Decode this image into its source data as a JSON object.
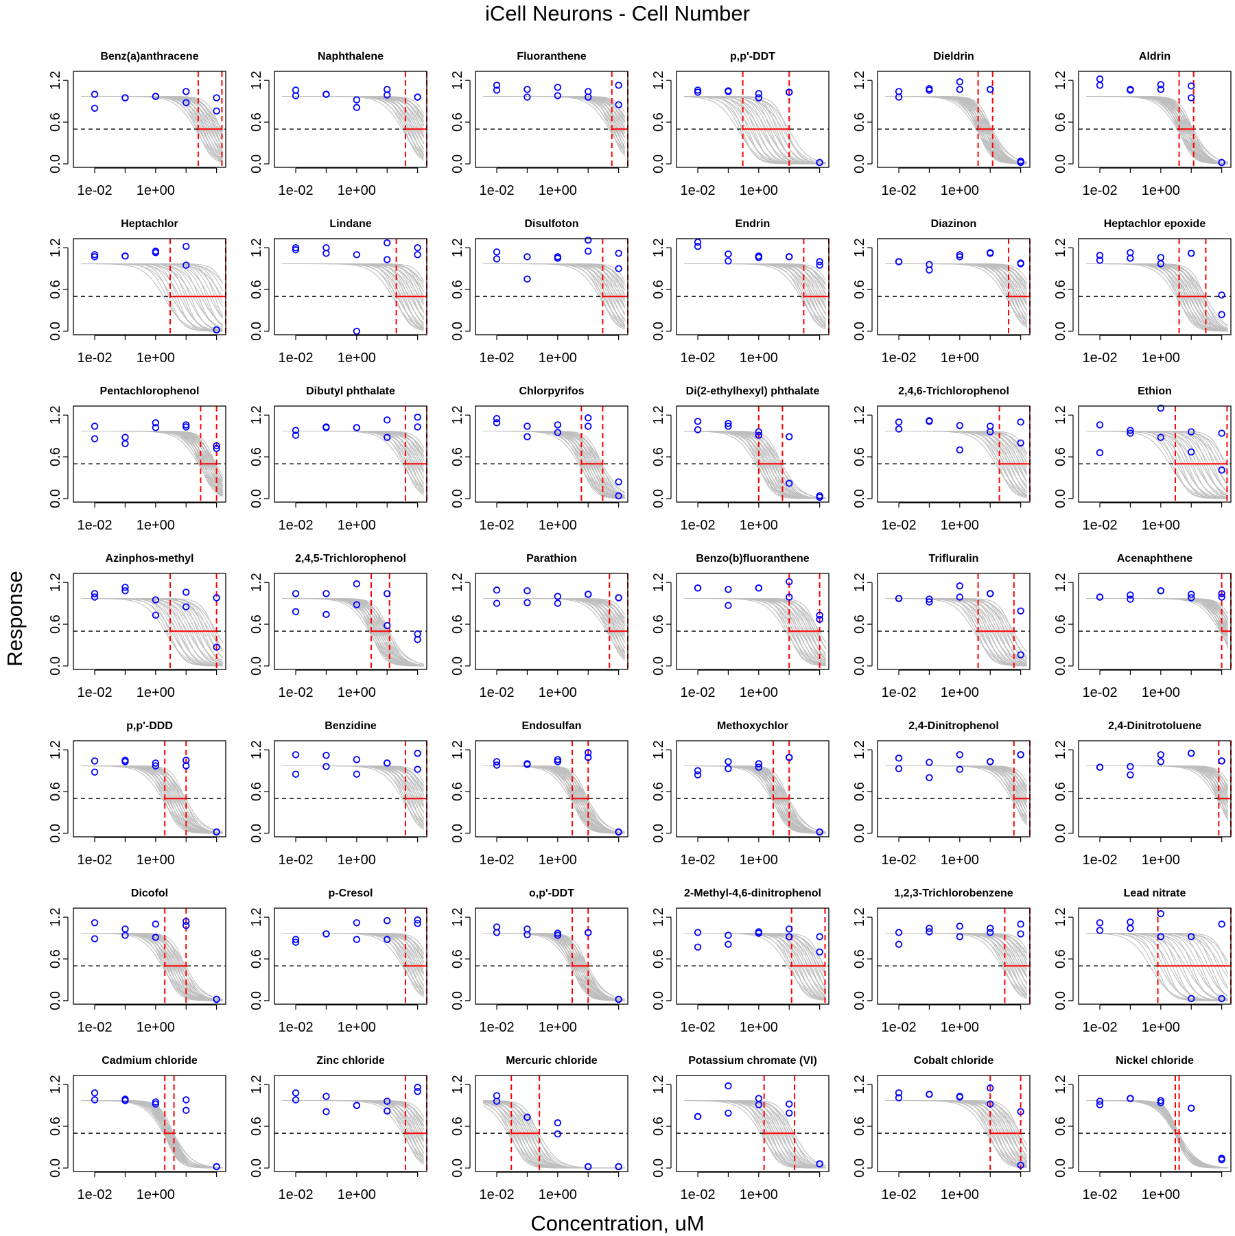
{
  "title": "iCell Neurons -  Cell Number",
  "xlabel": "Concentration, uM",
  "ylabel": "Response",
  "axis": {
    "x_scale": "log10",
    "x_ticks": [
      0.01,
      1
    ],
    "x_tick_labels": [
      "1e-02",
      "1e+00"
    ],
    "x_range": [
      0.002,
      200
    ],
    "y_ticks": [
      0.0,
      0.6,
      1.2
    ],
    "y_tick_labels": [
      "0.0",
      "0.6",
      "1.2"
    ],
    "y_range": [
      0.0,
      1.2
    ]
  },
  "colors": {
    "points": "#0000ff",
    "curves": "#bebebe",
    "interval": "#ff0000",
    "baseline": "#000000"
  },
  "chart_data": [
    {
      "type": "scatter",
      "title": "Benz(a)anthracene",
      "x": [
        0.01,
        0.01,
        0.1,
        0.1,
        1,
        1,
        10,
        10,
        100,
        100
      ],
      "y": [
        1.0,
        0.8,
        0.95,
        0.95,
        0.97,
        0.97,
        1.04,
        0.88,
        0.95,
        0.76
      ],
      "ci": [
        25,
        150
      ]
    },
    {
      "type": "scatter",
      "title": "Naphthalene",
      "x": [
        0.01,
        0.01,
        0.1,
        0.1,
        1,
        1,
        10,
        10,
        100,
        100
      ],
      "y": [
        1.06,
        0.98,
        1.0,
        1.0,
        0.92,
        0.81,
        1.07,
        0.99,
        0.96,
        0.96
      ],
      "ci": [
        40,
        300
      ]
    },
    {
      "type": "scatter",
      "title": "Fluoranthene",
      "x": [
        0.01,
        0.01,
        0.1,
        0.1,
        1,
        1,
        10,
        10,
        100,
        100
      ],
      "y": [
        1.13,
        1.06,
        1.07,
        0.96,
        1.1,
        0.98,
        1.04,
        0.96,
        1.13,
        0.85
      ],
      "ci": [
        60,
        300
      ]
    },
    {
      "type": "scatter",
      "title": "p,p'-DDT",
      "x": [
        0.01,
        0.01,
        0.1,
        0.1,
        1,
        1,
        10,
        10,
        100,
        100
      ],
      "y": [
        1.06,
        1.03,
        1.05,
        1.04,
        1.01,
        0.95,
        1.03,
        1.03,
        0.02,
        0.02
      ],
      "ci": [
        0.3,
        10
      ]
    },
    {
      "type": "scatter",
      "title": "Dieldrin",
      "x": [
        0.01,
        0.01,
        0.1,
        0.1,
        1,
        1,
        10,
        10,
        100,
        100
      ],
      "y": [
        1.04,
        0.96,
        1.08,
        1.06,
        1.18,
        1.07,
        1.07,
        1.07,
        0.04,
        0.02
      ],
      "ci": [
        4,
        12
      ]
    },
    {
      "type": "scatter",
      "title": "Aldrin",
      "x": [
        0.01,
        0.01,
        0.1,
        0.1,
        1,
        1,
        10,
        10,
        100,
        100
      ],
      "y": [
        1.22,
        1.13,
        1.07,
        1.06,
        1.14,
        1.07,
        1.12,
        0.95,
        0.02,
        0.02
      ],
      "ci": [
        4,
        12
      ]
    },
    {
      "type": "scatter",
      "title": "Heptachlor",
      "x": [
        0.01,
        0.01,
        0.1,
        0.1,
        1,
        1,
        10,
        10,
        100,
        100
      ],
      "y": [
        1.1,
        1.07,
        1.08,
        1.08,
        1.15,
        1.13,
        1.22,
        0.95,
        0.02,
        0.02
      ],
      "ci": [
        3,
        300
      ]
    },
    {
      "type": "scatter",
      "title": "Lindane",
      "x": [
        0.01,
        0.01,
        0.1,
        0.1,
        1,
        1,
        10,
        10,
        100,
        100
      ],
      "y": [
        1.2,
        1.17,
        1.2,
        1.12,
        1.1,
        0.0,
        1.03,
        1.27,
        1.2,
        1.1
      ],
      "ci": [
        20,
        300
      ]
    },
    {
      "type": "scatter",
      "title": "Disulfoton",
      "x": [
        0.01,
        0.01,
        0.1,
        0.1,
        1,
        1,
        10,
        10,
        100,
        100
      ],
      "y": [
        1.14,
        1.04,
        1.07,
        0.75,
        1.07,
        1.05,
        1.31,
        1.15,
        1.12,
        0.9
      ],
      "ci": [
        30,
        300
      ]
    },
    {
      "type": "scatter",
      "title": "Endrin",
      "x": [
        0.01,
        0.01,
        0.1,
        0.1,
        1,
        1,
        10,
        10,
        100,
        100
      ],
      "y": [
        1.28,
        1.22,
        1.11,
        1.01,
        1.08,
        1.06,
        1.07,
        1.07,
        1.0,
        0.95
      ],
      "ci": [
        30,
        300
      ]
    },
    {
      "type": "scatter",
      "title": "Diazinon",
      "x": [
        0.01,
        0.01,
        0.1,
        0.1,
        1,
        1,
        10,
        10,
        100,
        100
      ],
      "y": [
        1.0,
        1.0,
        0.96,
        0.88,
        1.1,
        1.07,
        1.13,
        1.12,
        0.98,
        0.97
      ],
      "ci": [
        40,
        300
      ]
    },
    {
      "type": "scatter",
      "title": "Heptachlor epoxide",
      "x": [
        0.01,
        0.01,
        0.1,
        0.1,
        1,
        1,
        10,
        10,
        100,
        100
      ],
      "y": [
        1.09,
        1.02,
        1.13,
        1.05,
        1.06,
        0.97,
        1.12,
        1.12,
        0.52,
        0.24
      ],
      "ci": [
        4,
        30
      ]
    },
    {
      "type": "scatter",
      "title": "Pentachlorophenol",
      "x": [
        0.01,
        0.01,
        0.1,
        0.1,
        1,
        1,
        10,
        10,
        100,
        100
      ],
      "y": [
        1.04,
        0.86,
        0.88,
        0.79,
        1.09,
        1.02,
        1.06,
        1.03,
        0.76,
        0.72
      ],
      "ci": [
        30,
        100
      ]
    },
    {
      "type": "scatter",
      "title": "Dibutyl phthalate",
      "x": [
        0.01,
        0.01,
        0.1,
        0.1,
        1,
        1,
        10,
        10,
        100,
        100
      ],
      "y": [
        0.98,
        0.91,
        1.03,
        1.02,
        1.02,
        1.02,
        1.13,
        0.88,
        1.17,
        1.03
      ],
      "ci": [
        40,
        300
      ]
    },
    {
      "type": "scatter",
      "title": "Chlorpyrifos",
      "x": [
        0.01,
        0.01,
        0.1,
        0.1,
        1,
        1,
        10,
        10,
        100,
        100
      ],
      "y": [
        1.15,
        1.09,
        1.04,
        0.89,
        1.06,
        0.95,
        1.16,
        1.04,
        0.24,
        0.04
      ],
      "ci": [
        6,
        30
      ]
    },
    {
      "type": "scatter",
      "title": "Di(2-ethylhexyl) phthalate",
      "x": [
        0.01,
        0.01,
        0.1,
        0.1,
        1,
        1,
        10,
        10,
        100,
        100
      ],
      "y": [
        1.11,
        0.99,
        1.08,
        1.04,
        0.96,
        0.91,
        0.89,
        0.22,
        0.04,
        0.02
      ],
      "ci": [
        1,
        6
      ]
    },
    {
      "type": "scatter",
      "title": "2,4,6-Trichlorophenol",
      "x": [
        0.01,
        0.01,
        0.1,
        0.1,
        1,
        1,
        10,
        10,
        100,
        100
      ],
      "y": [
        1.1,
        1.0,
        1.12,
        1.11,
        1.05,
        0.7,
        1.04,
        0.96,
        1.1,
        0.8
      ],
      "ci": [
        20,
        250
      ]
    },
    {
      "type": "scatter",
      "title": "Ethion",
      "x": [
        0.01,
        0.01,
        0.1,
        0.1,
        1,
        1,
        10,
        10,
        100,
        100
      ],
      "y": [
        1.06,
        0.66,
        0.98,
        0.94,
        1.3,
        0.88,
        0.96,
        0.67,
        0.94,
        0.41
      ],
      "ci": [
        3,
        150
      ]
    },
    {
      "type": "scatter",
      "title": "Azinphos-methyl",
      "x": [
        0.01,
        0.01,
        0.1,
        0.1,
        1,
        1,
        10,
        10,
        100,
        100
      ],
      "y": [
        1.04,
        0.99,
        1.13,
        1.08,
        0.95,
        0.73,
        1.06,
        0.85,
        0.98,
        0.27
      ],
      "ci": [
        3,
        100
      ]
    },
    {
      "type": "scatter",
      "title": "2,4,5-Trichlorophenol",
      "x": [
        0.01,
        0.01,
        0.1,
        0.1,
        1,
        1,
        10,
        10,
        100,
        100
      ],
      "y": [
        1.04,
        0.78,
        1.04,
        0.74,
        1.18,
        0.88,
        1.04,
        0.58,
        0.46,
        0.38
      ],
      "ci": [
        3,
        12
      ]
    },
    {
      "type": "scatter",
      "title": "Parathion",
      "x": [
        0.01,
        0.01,
        0.1,
        0.1,
        1,
        1,
        10,
        10,
        100,
        100
      ],
      "y": [
        1.09,
        0.9,
        1.08,
        0.91,
        1.0,
        0.9,
        1.03,
        1.03,
        0.98,
        0.98
      ],
      "ci": [
        50,
        300
      ]
    },
    {
      "type": "scatter",
      "title": "Benzo(b)fluoranthene",
      "x": [
        0.01,
        0.01,
        0.1,
        0.1,
        1,
        1,
        10,
        10,
        100,
        100
      ],
      "y": [
        1.12,
        1.12,
        1.1,
        0.87,
        1.12,
        1.12,
        1.21,
        0.99,
        0.73,
        0.67
      ],
      "ci": [
        10,
        100
      ]
    },
    {
      "type": "scatter",
      "title": "Trifluralin",
      "x": [
        0.01,
        0.01,
        0.1,
        0.1,
        1,
        1,
        10,
        10,
        100,
        100
      ],
      "y": [
        0.97,
        0.97,
        0.96,
        0.92,
        1.15,
        0.99,
        1.04,
        1.04,
        0.79,
        0.16
      ],
      "ci": [
        4,
        60
      ]
    },
    {
      "type": "scatter",
      "title": "Acenaphthene",
      "x": [
        0.01,
        0.01,
        0.1,
        0.1,
        1,
        1,
        10,
        10,
        100,
        100
      ],
      "y": [
        0.99,
        0.99,
        1.02,
        0.96,
        1.08,
        1.08,
        1.03,
        0.98,
        1.04,
        0.99
      ],
      "ci": [
        100,
        300
      ]
    },
    {
      "type": "scatter",
      "title": "p,p'-DDD",
      "x": [
        0.01,
        0.01,
        0.1,
        0.1,
        1,
        1,
        10,
        10,
        100,
        100
      ],
      "y": [
        1.04,
        0.88,
        1.05,
        1.03,
        1.01,
        0.97,
        1.05,
        0.97,
        0.02,
        0.02
      ],
      "ci": [
        2,
        10
      ]
    },
    {
      "type": "scatter",
      "title": "Benzidine",
      "x": [
        0.01,
        0.01,
        0.1,
        0.1,
        1,
        1,
        10,
        10,
        100,
        100
      ],
      "y": [
        1.13,
        0.85,
        1.12,
        0.96,
        1.06,
        0.85,
        1.01,
        1.01,
        1.15,
        0.92
      ],
      "ci": [
        40,
        300
      ]
    },
    {
      "type": "scatter",
      "title": "Endosulfan",
      "x": [
        0.01,
        0.01,
        0.1,
        0.1,
        1,
        1,
        10,
        10,
        100,
        100
      ],
      "y": [
        1.03,
        0.98,
        1.0,
        0.99,
        1.06,
        1.03,
        1.16,
        1.09,
        0.02,
        0.02
      ],
      "ci": [
        3,
        10
      ]
    },
    {
      "type": "scatter",
      "title": "Methoxychlor",
      "x": [
        0.01,
        0.01,
        0.1,
        0.1,
        1,
        1,
        10,
        10,
        100,
        100
      ],
      "y": [
        0.9,
        0.84,
        1.03,
        0.93,
        1.0,
        0.95,
        1.09,
        1.09,
        0.02,
        0.02
      ],
      "ci": [
        3,
        10
      ]
    },
    {
      "type": "scatter",
      "title": "2,4-Dinitrophenol",
      "x": [
        0.01,
        0.01,
        0.1,
        0.1,
        1,
        1,
        10,
        10,
        100,
        100
      ],
      "y": [
        1.08,
        0.93,
        1.02,
        0.8,
        1.13,
        0.92,
        1.03,
        1.03,
        1.13,
        1.13
      ],
      "ci": [
        60,
        300
      ]
    },
    {
      "type": "scatter",
      "title": "2,4-Dinitrotoluene",
      "x": [
        0.01,
        0.01,
        0.1,
        0.1,
        1,
        1,
        10,
        10,
        100,
        100
      ],
      "y": [
        0.95,
        0.95,
        0.96,
        0.84,
        1.13,
        1.03,
        1.15,
        1.15,
        1.04,
        1.04
      ],
      "ci": [
        80,
        300
      ]
    },
    {
      "type": "scatter",
      "title": "Dicofol",
      "x": [
        0.01,
        0.01,
        0.1,
        0.1,
        1,
        1,
        10,
        10,
        100,
        100
      ],
      "y": [
        1.12,
        0.89,
        1.03,
        0.94,
        1.1,
        0.91,
        1.14,
        1.08,
        0.02,
        0.02
      ],
      "ci": [
        2,
        10
      ]
    },
    {
      "type": "scatter",
      "title": "p-Cresol",
      "x": [
        0.01,
        0.01,
        0.1,
        0.1,
        1,
        1,
        10,
        10,
        100,
        100
      ],
      "y": [
        0.88,
        0.84,
        0.96,
        0.96,
        1.12,
        0.88,
        1.15,
        0.88,
        1.16,
        1.11
      ],
      "ci": [
        40,
        300
      ]
    },
    {
      "type": "scatter",
      "title": "o,p'-DDT",
      "x": [
        0.01,
        0.01,
        0.1,
        0.1,
        1,
        1,
        10,
        10,
        100,
        100
      ],
      "y": [
        1.06,
        0.98,
        1.03,
        0.95,
        0.97,
        0.94,
        0.98,
        0.98,
        0.02,
        0.02
      ],
      "ci": [
        3,
        10
      ]
    },
    {
      "type": "scatter",
      "title": "2-Methyl-4,6-dinitrophenol",
      "x": [
        0.01,
        0.01,
        0.1,
        0.1,
        1,
        1,
        10,
        10,
        100,
        100
      ],
      "y": [
        0.98,
        0.77,
        0.94,
        0.81,
        0.99,
        0.97,
        1.03,
        0.92,
        0.92,
        0.7
      ],
      "ci": [
        12,
        150
      ]
    },
    {
      "type": "scatter",
      "title": "1,2,3-Trichlorobenzene",
      "x": [
        0.01,
        0.01,
        0.1,
        0.1,
        1,
        1,
        10,
        10,
        100,
        100
      ],
      "y": [
        0.98,
        0.81,
        1.04,
        0.99,
        1.07,
        0.92,
        1.04,
        0.98,
        1.1,
        0.96
      ],
      "ci": [
        30,
        300
      ]
    },
    {
      "type": "scatter",
      "title": "Lead nitrate",
      "x": [
        0.01,
        0.01,
        0.1,
        0.1,
        1,
        1,
        10,
        10,
        100,
        100
      ],
      "y": [
        1.12,
        1.01,
        1.13,
        1.04,
        1.25,
        0.92,
        0.92,
        0.03,
        1.1,
        0.03
      ],
      "ci": [
        0.8,
        200
      ]
    },
    {
      "type": "scatter",
      "title": "Cadmium chloride",
      "x": [
        0.01,
        0.01,
        0.1,
        0.1,
        1,
        1,
        10,
        10,
        100,
        100
      ],
      "y": [
        1.08,
        0.98,
        0.99,
        0.97,
        0.95,
        0.92,
        0.98,
        0.83,
        0.02,
        0.02
      ],
      "ci": [
        2,
        4
      ]
    },
    {
      "type": "scatter",
      "title": "Zinc chloride",
      "x": [
        0.01,
        0.01,
        0.1,
        0.1,
        1,
        1,
        10,
        10,
        100,
        100
      ],
      "y": [
        1.08,
        0.98,
        1.03,
        0.81,
        0.9,
        0.9,
        0.96,
        0.82,
        1.16,
        1.1
      ],
      "ci": [
        40,
        300
      ]
    },
    {
      "type": "scatter",
      "title": "Mercuric chloride",
      "x": [
        0.01,
        0.01,
        0.1,
        0.1,
        1,
        1,
        10,
        10,
        100,
        100
      ],
      "y": [
        1.04,
        0.96,
        0.73,
        0.73,
        0.65,
        0.49,
        0.02,
        0.02,
        0.02,
        0.02
      ],
      "ci": [
        0.03,
        0.25
      ]
    },
    {
      "type": "scatter",
      "title": "Potassium chromate (VI)",
      "x": [
        0.01,
        0.01,
        0.1,
        0.1,
        1,
        1,
        10,
        10,
        100,
        100
      ],
      "y": [
        0.74,
        0.74,
        1.18,
        0.79,
        1.0,
        0.91,
        0.92,
        0.79,
        0.06,
        0.06
      ],
      "ci": [
        1.5,
        15
      ]
    },
    {
      "type": "scatter",
      "title": "Cobalt chloride",
      "x": [
        0.01,
        0.01,
        0.1,
        0.1,
        1,
        1,
        10,
        10,
        100,
        100
      ],
      "y": [
        1.08,
        1.01,
        1.06,
        1.06,
        1.03,
        1.02,
        1.15,
        0.92,
        0.81,
        0.04
      ],
      "ci": [
        10,
        100
      ]
    },
    {
      "type": "scatter",
      "title": "Nickel chloride",
      "x": [
        0.01,
        0.01,
        0.1,
        0.1,
        1,
        1,
        10,
        10,
        100,
        100
      ],
      "y": [
        0.96,
        0.91,
        1.0,
        1.0,
        0.97,
        0.94,
        0.86,
        0.86,
        0.14,
        0.12
      ],
      "ci": [
        3,
        4
      ]
    }
  ]
}
